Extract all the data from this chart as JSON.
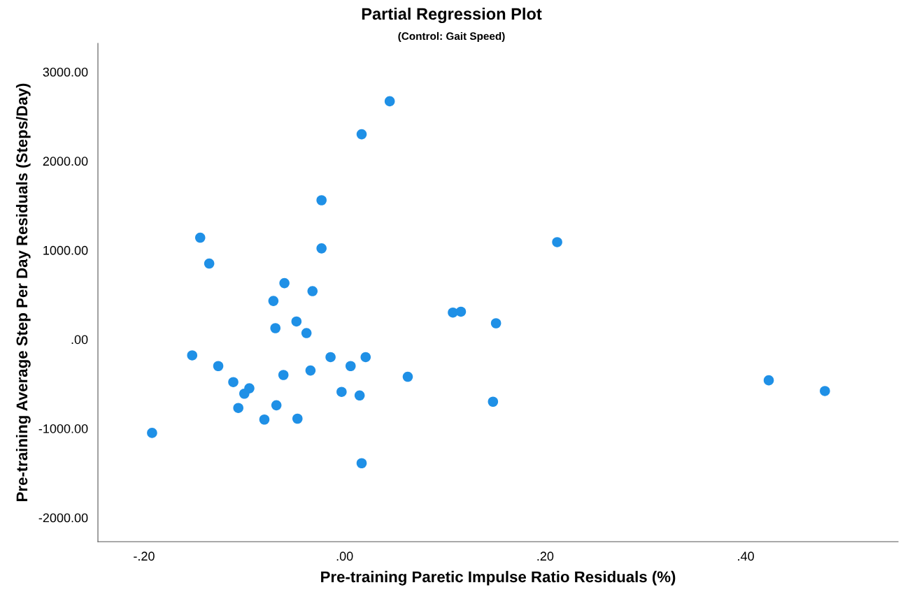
{
  "chart_data": {
    "type": "scatter",
    "title": "Partial Regression Plot",
    "subtitle": "(Control: Gait Speed)",
    "xlabel": "Pre-training Paretic Impulse Ratio Residuals (%)",
    "ylabel": "Pre-training Average Step Per Day Residuals (Steps/Day)",
    "x": [
      0.045,
      0.017,
      -0.023,
      -0.023,
      -0.144,
      -0.135,
      0.212,
      -0.06,
      -0.071,
      -0.032,
      -0.069,
      -0.048,
      -0.038,
      0.108,
      0.116,
      0.151,
      -0.152,
      -0.014,
      0.021,
      -0.126,
      0.006,
      -0.034,
      -0.061,
      0.063,
      -0.111,
      -0.095,
      -0.1,
      -0.003,
      0.015,
      -0.068,
      -0.106,
      0.148,
      -0.08,
      -0.047,
      -0.192,
      0.017,
      0.423,
      0.479
    ],
    "series": [
      {
        "color": "#1f90e6",
        "values": [
          2670,
          2300,
          1560,
          1020,
          1140,
          850,
          1090,
          630,
          430,
          540,
          125,
          200,
          70,
          300,
          310,
          180,
          -180,
          -200,
          -200,
          -300,
          -300,
          -350,
          -400,
          -420,
          -480,
          -550,
          -610,
          -590,
          -630,
          -740,
          -770,
          -700,
          -900,
          -890,
          -1050,
          -1390,
          -460,
          -580
        ]
      }
    ],
    "marker": "circle",
    "xlim": [
      -0.246,
      0.552
    ],
    "ylim": [
      -2270,
      3320
    ],
    "xticks": [
      {
        "value": -0.2,
        "label": "-.20"
      },
      {
        "value": 0,
        "label": ".00"
      },
      {
        "value": 0.2,
        "label": ".20"
      },
      {
        "value": 0.4,
        "label": ".40"
      }
    ],
    "yticks": [
      {
        "value": -2000,
        "label": "-2000.00"
      },
      {
        "value": -1000,
        "label": "-1000.00"
      },
      {
        "value": 0,
        "label": ".00"
      },
      {
        "value": 1000,
        "label": "1000.00"
      },
      {
        "value": 2000,
        "label": "2000.00"
      },
      {
        "value": 3000,
        "label": "3000.00"
      }
    ]
  }
}
